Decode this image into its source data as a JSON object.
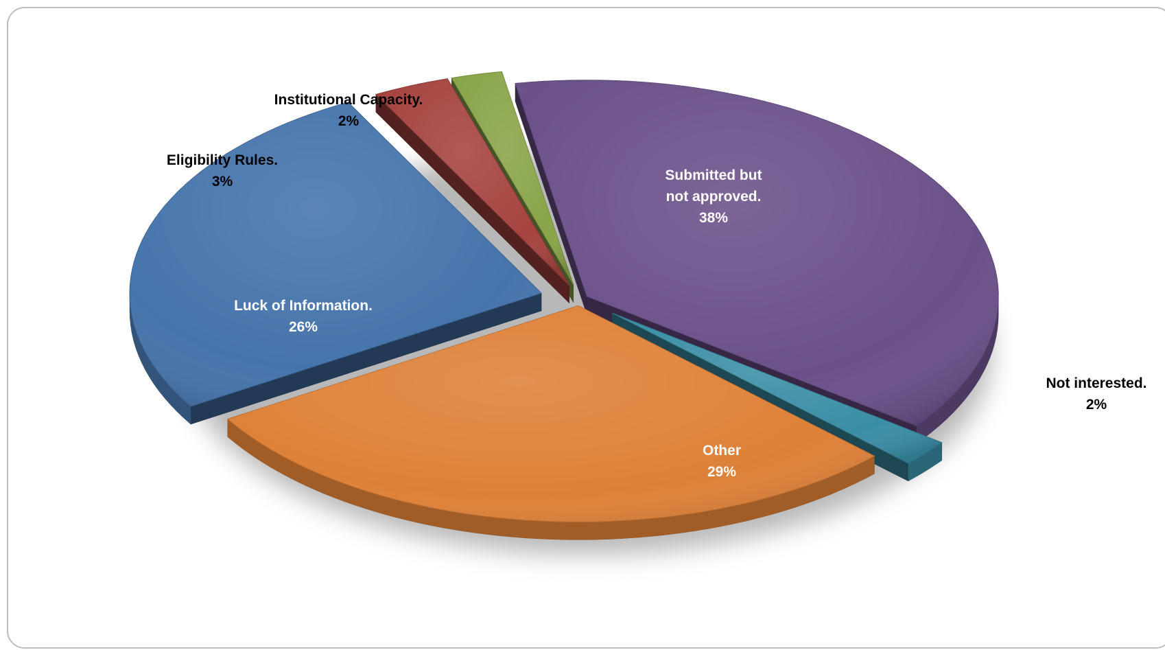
{
  "chart_data": {
    "type": "pie",
    "title": "",
    "slices": [
      {
        "key": "submitted",
        "label_lines": [
          "Submitted but",
          "not  approved."
        ],
        "percent_label": "38%",
        "value": 38,
        "color": "#6B5089",
        "label_color": "#ffffff"
      },
      {
        "key": "not-interested",
        "label_lines": [
          "Not interested."
        ],
        "percent_label": "2%",
        "value": 2,
        "color": "#3A8EA5",
        "label_color": "#000000"
      },
      {
        "key": "other",
        "label_lines": [
          "Other"
        ],
        "percent_label": "29%",
        "value": 29,
        "color": "#DE8138",
        "label_color": "#ffffff"
      },
      {
        "key": "luck",
        "label_lines": [
          "Luck of Information."
        ],
        "percent_label": "26%",
        "value": 26,
        "color": "#4574AB",
        "label_color": "#ffffff"
      },
      {
        "key": "eligibility",
        "label_lines": [
          "Eligibility Rules."
        ],
        "percent_label": "3%",
        "value": 3,
        "color": "#A5433F",
        "label_color": "#000000"
      },
      {
        "key": "institutional",
        "label_lines": [
          "Institutional Capacity."
        ],
        "percent_label": "2%",
        "value": 2,
        "color": "#89A449",
        "label_color": "#000000"
      }
    ]
  }
}
